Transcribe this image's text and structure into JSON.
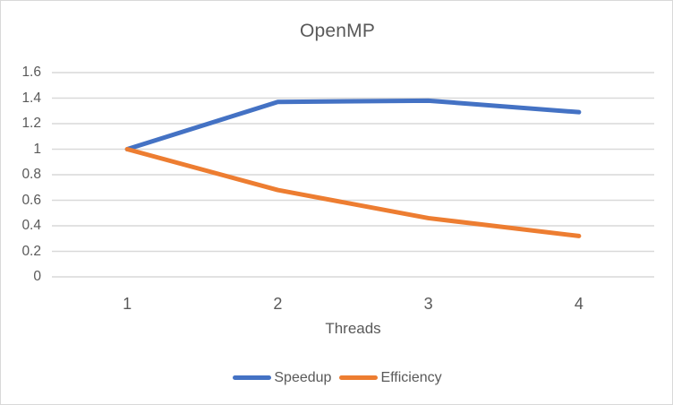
{
  "chart_data": {
    "type": "line",
    "title": "OpenMP",
    "xlabel": "Threads",
    "ylabel": "",
    "categories": [
      "1",
      "2",
      "3",
      "4"
    ],
    "series": [
      {
        "name": "Speedup",
        "color": "#4472C4",
        "values": [
          1,
          1.37,
          1.38,
          1.29
        ]
      },
      {
        "name": "Efficiency",
        "color": "#ED7D31",
        "values": [
          1,
          0.68,
          0.46,
          0.32
        ]
      }
    ],
    "ylim": [
      0,
      1.6
    ],
    "ytick_step": 0.2,
    "ytick_labels": [
      "0",
      "0.2",
      "0.4",
      "0.6",
      "0.8",
      "1",
      "1.2",
      "1.4",
      "1.6"
    ],
    "grid": true,
    "legend_position": "bottom",
    "gridline_color": "#D9D9D9",
    "axis_text_color": "#595959",
    "background_color": "#FFFFFF",
    "border_color": "#D9D9D9"
  }
}
